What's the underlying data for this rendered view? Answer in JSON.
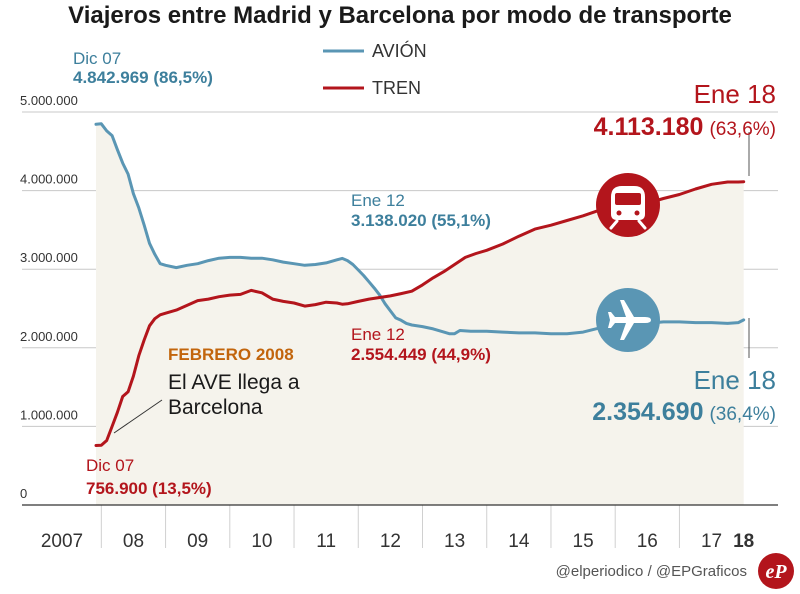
{
  "chart_data": {
    "type": "line",
    "title": "Viajeros entre Madrid y Barcelona por modo de transporte",
    "ylim": [
      0,
      5000000
    ],
    "xlim": [
      2007.917,
      2018.083
    ],
    "y_ticks": [
      {
        "value": 0,
        "label": "0"
      },
      {
        "value": 1000000,
        "label": "1.000.000"
      },
      {
        "value": 2000000,
        "label": "2.000.000"
      },
      {
        "value": 3000000,
        "label": "3.000.000"
      },
      {
        "value": 4000000,
        "label": "4.000.000"
      },
      {
        "value": 5000000,
        "label": "5.000.000"
      }
    ],
    "x_ticks": [
      {
        "value": 2007.4,
        "label": "2007",
        "bold": false
      },
      {
        "value": 2008.5,
        "label": "08",
        "bold": false
      },
      {
        "value": 2009.5,
        "label": "09",
        "bold": false
      },
      {
        "value": 2010.5,
        "label": "10",
        "bold": false
      },
      {
        "value": 2011.5,
        "label": "11",
        "bold": false
      },
      {
        "value": 2012.5,
        "label": "12",
        "bold": false
      },
      {
        "value": 2013.5,
        "label": "13",
        "bold": false
      },
      {
        "value": 2014.5,
        "label": "14",
        "bold": false
      },
      {
        "value": 2015.5,
        "label": "15",
        "bold": false
      },
      {
        "value": 2016.5,
        "label": "16",
        "bold": false
      },
      {
        "value": 2017.5,
        "label": "17",
        "bold": false
      },
      {
        "value": 2018.0,
        "label": "18",
        "bold": true
      }
    ],
    "x_dividers": [
      2008.0,
      2009.0,
      2010.0,
      2011.0,
      2012.0,
      2013.0,
      2014.0,
      2015.0,
      2016.0,
      2017.0
    ],
    "grid": true,
    "legend_position": "top-center",
    "series": [
      {
        "name": "AVIÓN",
        "color": "#5a96b4",
        "points": [
          [
            2007.917,
            4842969
          ],
          [
            2008.0,
            4850000
          ],
          [
            2008.083,
            4760000
          ],
          [
            2008.167,
            4700000
          ],
          [
            2008.25,
            4520000
          ],
          [
            2008.333,
            4350000
          ],
          [
            2008.417,
            4210000
          ],
          [
            2008.5,
            3960000
          ],
          [
            2008.583,
            3780000
          ],
          [
            2008.667,
            3560000
          ],
          [
            2008.75,
            3330000
          ],
          [
            2008.833,
            3190000
          ],
          [
            2008.917,
            3070000
          ],
          [
            2009.0,
            3050000
          ],
          [
            2009.167,
            3020000
          ],
          [
            2009.333,
            3050000
          ],
          [
            2009.5,
            3070000
          ],
          [
            2009.667,
            3110000
          ],
          [
            2009.833,
            3140000
          ],
          [
            2010.0,
            3150000
          ],
          [
            2010.167,
            3150000
          ],
          [
            2010.333,
            3140000
          ],
          [
            2010.5,
            3140000
          ],
          [
            2010.667,
            3120000
          ],
          [
            2010.833,
            3090000
          ],
          [
            2011.0,
            3070000
          ],
          [
            2011.167,
            3050000
          ],
          [
            2011.333,
            3060000
          ],
          [
            2011.5,
            3080000
          ],
          [
            2011.667,
            3120000
          ],
          [
            2011.75,
            3138020
          ],
          [
            2011.833,
            3110000
          ],
          [
            2011.917,
            3060000
          ],
          [
            2012.0,
            2990000
          ],
          [
            2012.083,
            2920000
          ],
          [
            2012.167,
            2840000
          ],
          [
            2012.25,
            2760000
          ],
          [
            2012.333,
            2670000
          ],
          [
            2012.417,
            2560000
          ],
          [
            2012.5,
            2470000
          ],
          [
            2012.583,
            2380000
          ],
          [
            2012.667,
            2350000
          ],
          [
            2012.75,
            2310000
          ],
          [
            2012.833,
            2290000
          ],
          [
            2013.0,
            2270000
          ],
          [
            2013.167,
            2240000
          ],
          [
            2013.333,
            2200000
          ],
          [
            2013.417,
            2180000
          ],
          [
            2013.5,
            2180000
          ],
          [
            2013.583,
            2220000
          ],
          [
            2013.75,
            2210000
          ],
          [
            2014.0,
            2210000
          ],
          [
            2014.25,
            2200000
          ],
          [
            2014.5,
            2190000
          ],
          [
            2014.75,
            2190000
          ],
          [
            2015.0,
            2180000
          ],
          [
            2015.25,
            2180000
          ],
          [
            2015.5,
            2200000
          ],
          [
            2015.75,
            2250000
          ],
          [
            2016.0,
            2290000
          ],
          [
            2016.25,
            2300000
          ],
          [
            2016.5,
            2310000
          ],
          [
            2016.75,
            2330000
          ],
          [
            2017.0,
            2330000
          ],
          [
            2017.25,
            2320000
          ],
          [
            2017.5,
            2320000
          ],
          [
            2017.75,
            2310000
          ],
          [
            2017.917,
            2320000
          ],
          [
            2018.0,
            2354690
          ]
        ]
      },
      {
        "name": "TREN",
        "color": "#b3151c",
        "points": [
          [
            2007.917,
            756900
          ],
          [
            2008.0,
            760000
          ],
          [
            2008.083,
            820000
          ],
          [
            2008.167,
            1000000
          ],
          [
            2008.25,
            1180000
          ],
          [
            2008.333,
            1380000
          ],
          [
            2008.417,
            1440000
          ],
          [
            2008.5,
            1640000
          ],
          [
            2008.583,
            1900000
          ],
          [
            2008.667,
            2100000
          ],
          [
            2008.75,
            2280000
          ],
          [
            2008.833,
            2370000
          ],
          [
            2008.917,
            2420000
          ],
          [
            2009.0,
            2440000
          ],
          [
            2009.167,
            2480000
          ],
          [
            2009.333,
            2540000
          ],
          [
            2009.5,
            2600000
          ],
          [
            2009.667,
            2620000
          ],
          [
            2009.833,
            2650000
          ],
          [
            2010.0,
            2670000
          ],
          [
            2010.167,
            2680000
          ],
          [
            2010.333,
            2730000
          ],
          [
            2010.5,
            2700000
          ],
          [
            2010.667,
            2620000
          ],
          [
            2010.833,
            2590000
          ],
          [
            2011.0,
            2570000
          ],
          [
            2011.167,
            2530000
          ],
          [
            2011.333,
            2550000
          ],
          [
            2011.5,
            2580000
          ],
          [
            2011.667,
            2570000
          ],
          [
            2011.75,
            2554449
          ],
          [
            2011.833,
            2560000
          ],
          [
            2012.0,
            2590000
          ],
          [
            2012.167,
            2620000
          ],
          [
            2012.333,
            2640000
          ],
          [
            2012.5,
            2660000
          ],
          [
            2012.667,
            2690000
          ],
          [
            2012.833,
            2720000
          ],
          [
            2013.0,
            2800000
          ],
          [
            2013.167,
            2890000
          ],
          [
            2013.333,
            2970000
          ],
          [
            2013.5,
            3060000
          ],
          [
            2013.667,
            3150000
          ],
          [
            2013.833,
            3200000
          ],
          [
            2014.0,
            3240000
          ],
          [
            2014.25,
            3320000
          ],
          [
            2014.5,
            3420000
          ],
          [
            2014.75,
            3510000
          ],
          [
            2015.0,
            3560000
          ],
          [
            2015.25,
            3620000
          ],
          [
            2015.5,
            3680000
          ],
          [
            2015.75,
            3750000
          ],
          [
            2016.0,
            3790000
          ],
          [
            2016.25,
            3810000
          ],
          [
            2016.5,
            3840000
          ],
          [
            2016.75,
            3900000
          ],
          [
            2017.0,
            3950000
          ],
          [
            2017.25,
            4020000
          ],
          [
            2017.5,
            4080000
          ],
          [
            2017.75,
            4110000
          ],
          [
            2017.917,
            4110000
          ],
          [
            2018.0,
            4113180
          ]
        ]
      }
    ],
    "annotations": {
      "avion_start": {
        "date": "Dic 07",
        "value": "4.842.969 (86,5%)"
      },
      "avion_mid": {
        "date": "Ene 12",
        "value": "3.138.020 (55,1%)"
      },
      "avion_end": {
        "date": "Ene 18",
        "value": "2.354.690",
        "pct": "(36,4%)"
      },
      "tren_start": {
        "date": "Dic 07",
        "value": "756.900 (13,5%)"
      },
      "tren_mid": {
        "date": "Ene 12",
        "value": "2.554.449 (44,9%)"
      },
      "tren_end": {
        "date": "Ene 18",
        "value": "4.113.180",
        "pct": "(63,6%)"
      },
      "ave": {
        "heading": "FEBRERO 2008",
        "line1": "El AVE llega a",
        "line2": "Barcelona"
      }
    }
  },
  "colors": {
    "avion": "#5a96b4",
    "tren": "#b3151c",
    "area": "#f5f3ec",
    "grid": "#c8c8c8",
    "annotation_blue": "#3d7f9c",
    "annotation_orange": "#c2650c"
  },
  "icons": {
    "train": "train-icon",
    "plane": "plane-icon",
    "logo": "elperiodico-logo"
  },
  "credit": "@elperiodico / @EPGraficos",
  "logo_text": "eP"
}
